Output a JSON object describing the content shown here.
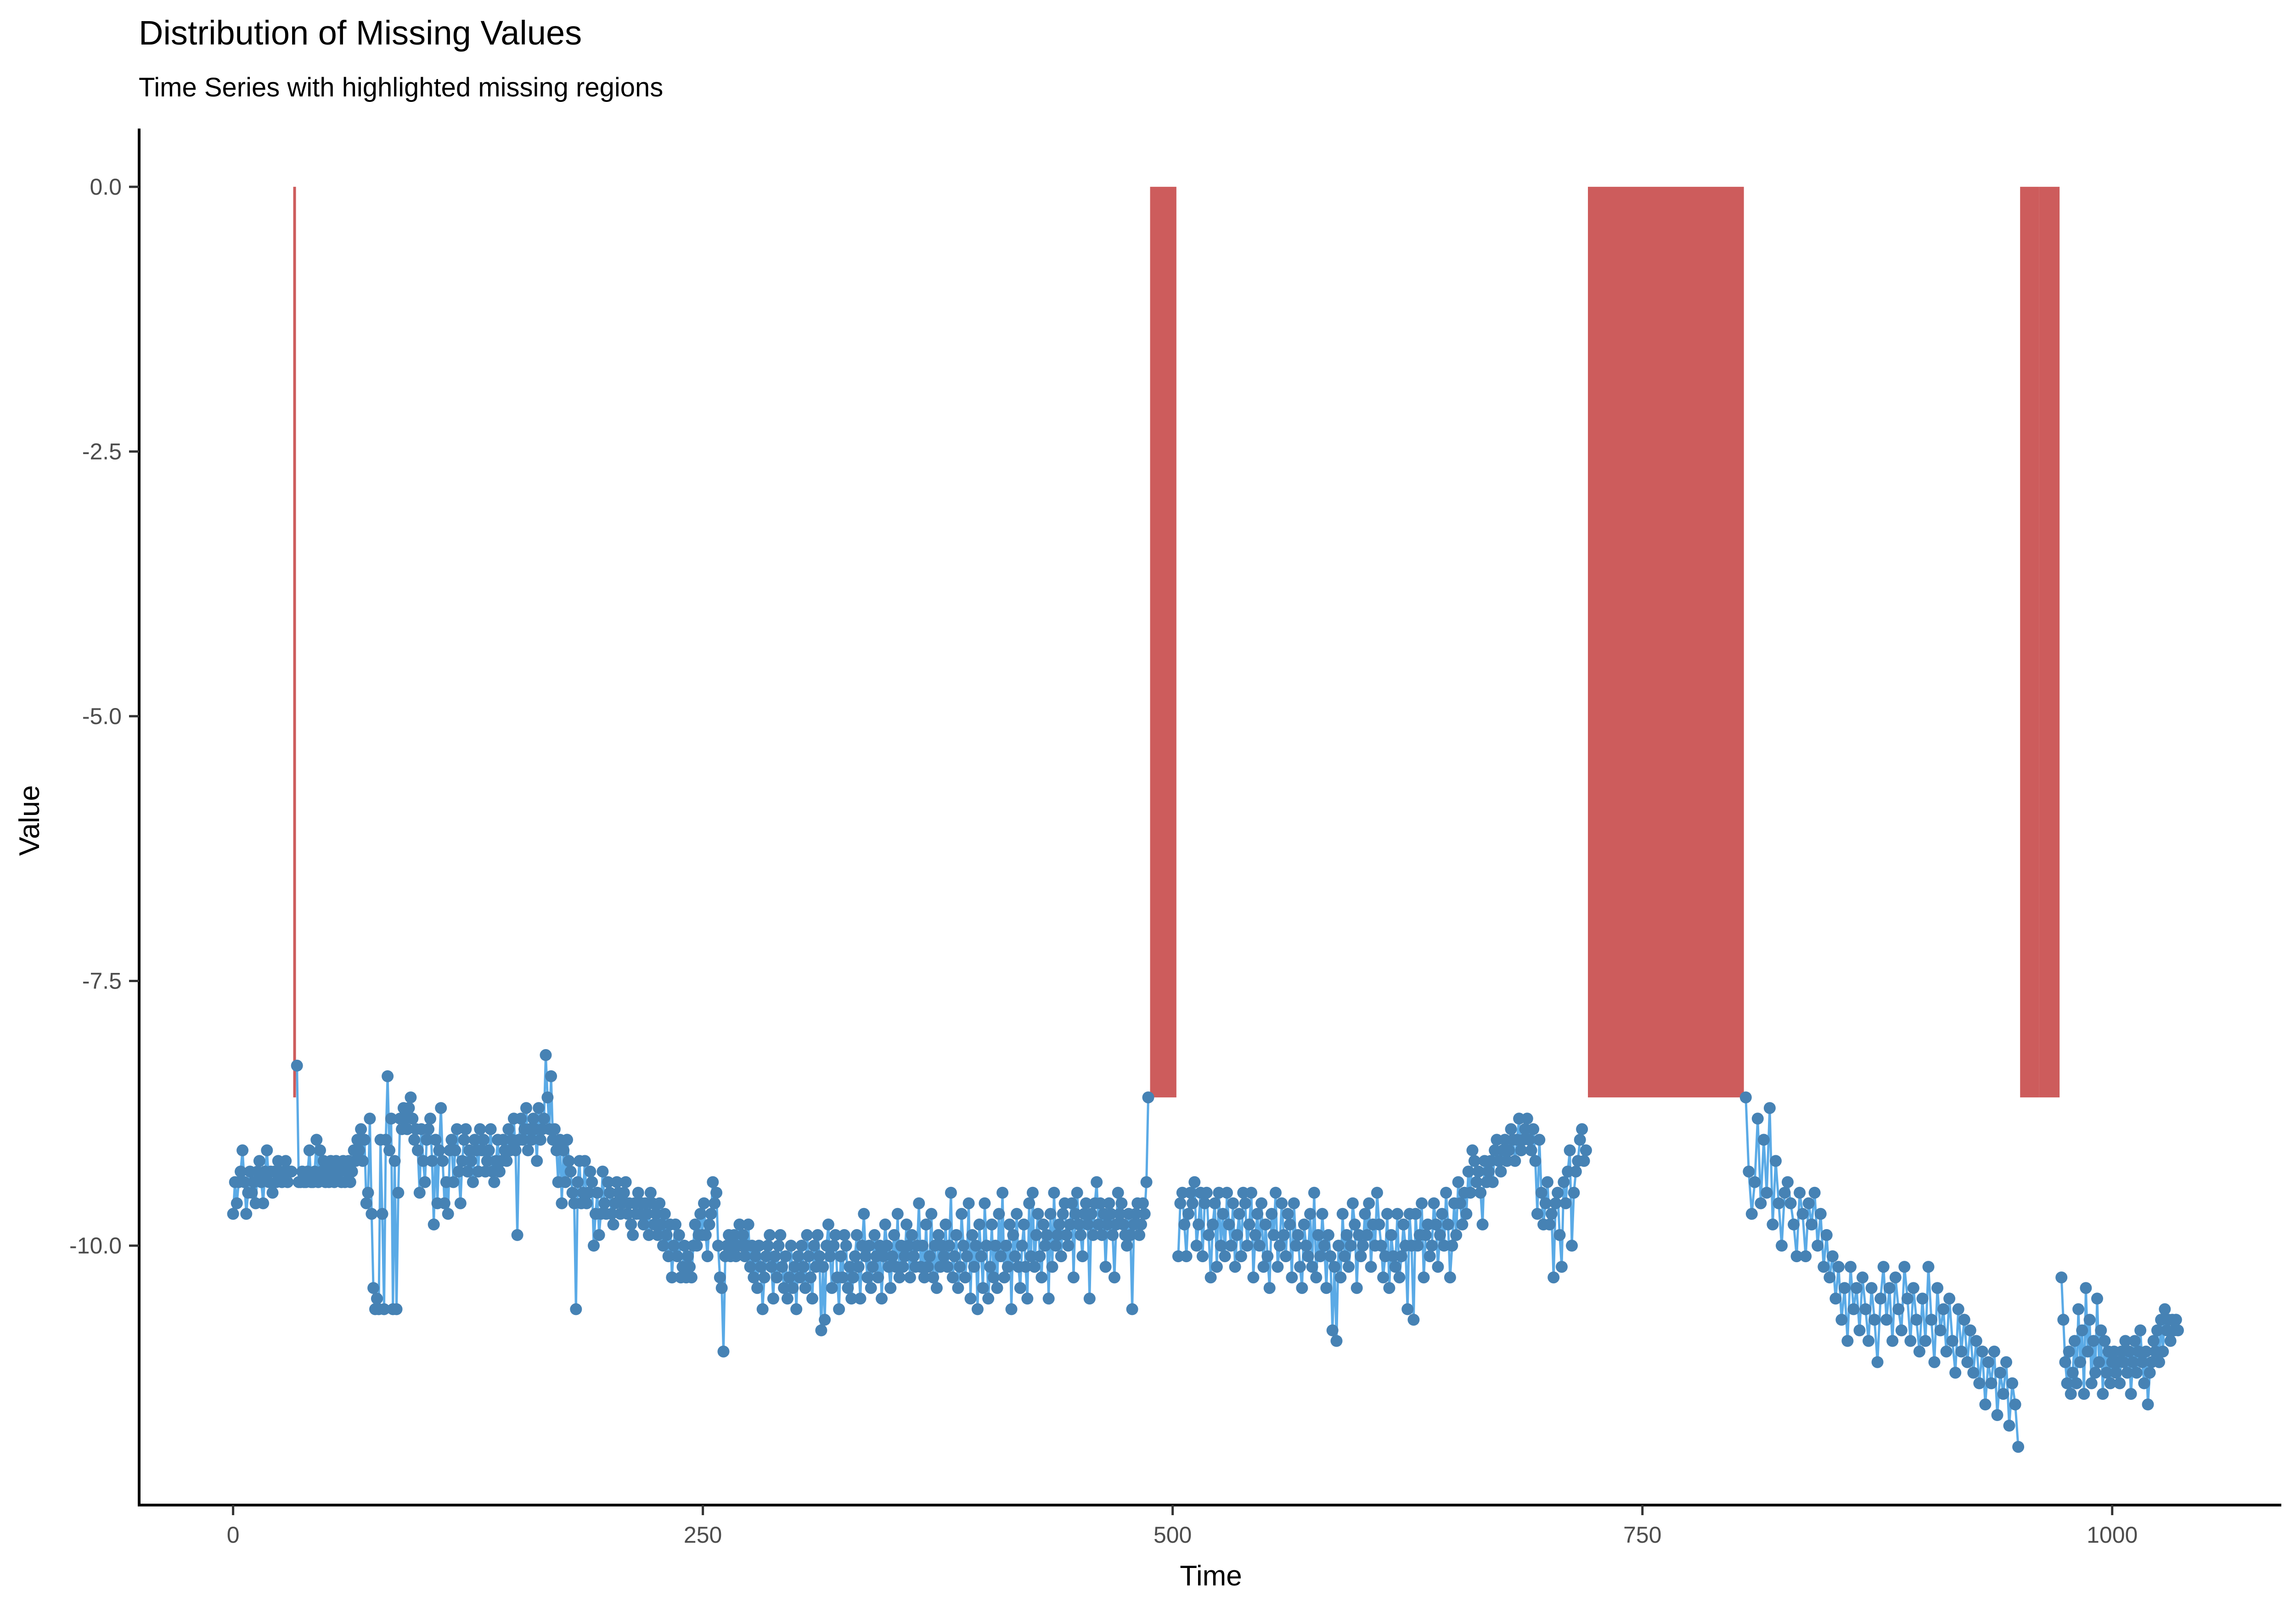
{
  "chart_data": {
    "type": "line",
    "title": "Distribution of Missing Values",
    "subtitle": "Time Series with highlighted missing regions",
    "xlabel": "Time",
    "ylabel": "Value",
    "xlim": [
      -50,
      1090
    ],
    "ylim": [
      -12.45,
      0.55
    ],
    "x_ticks": [
      0,
      250,
      500,
      750,
      1000
    ],
    "x_tick_labels": [
      "0",
      "250",
      "500",
      "750",
      "1000"
    ],
    "y_ticks": [
      0.0,
      -2.5,
      -5.0,
      -7.5,
      -10.0
    ],
    "y_tick_labels": [
      "0.0",
      "-2.5",
      "-5.0",
      "-7.5",
      "-10.0"
    ],
    "grid": false,
    "legend": "none",
    "colors": {
      "line": "#5aaae6",
      "points": "#4682b4",
      "missing_region": "#cd5c5c"
    },
    "missing_regions": [
      {
        "x_start": 32,
        "x_end": 33,
        "y_top": 0.0,
        "y_bottom": -8.6
      },
      {
        "x_start": 488,
        "x_end": 502,
        "y_top": 0.0,
        "y_bottom": -8.6
      },
      {
        "x_start": 721,
        "x_end": 804,
        "y_top": 0.0,
        "y_bottom": -8.6
      },
      {
        "x_start": 951,
        "x_end": 961,
        "y_top": 0.0,
        "y_bottom": -8.6
      },
      {
        "x_start": 961,
        "x_end": 972,
        "y_top": 0.0,
        "y_bottom": -8.6
      }
    ],
    "series": [
      {
        "segments": [
          {
            "x_start": 0,
            "x_end": 31,
            "y": [
              -9.7,
              -9.4,
              -9.6,
              -9.4,
              -9.3,
              -9.1,
              -9.4,
              -9.7,
              -9.5,
              -9.3,
              -9.5,
              -9.4,
              -9.6,
              -9.3,
              -9.2,
              -9.4,
              -9.6,
              -9.3,
              -9.1,
              -9.4,
              -9.3,
              -9.5,
              -9.3,
              -9.4,
              -9.2,
              -9.3,
              -9.4,
              -9.3,
              -9.2,
              -9.4,
              -9.3,
              -9.3
            ]
          },
          {
            "x_start": 34,
            "x_end": 487,
            "y": [
              -8.3,
              -9.4,
              -9.4,
              -9.3,
              -9.4,
              -9.4,
              -9.3,
              -9.1,
              -9.4,
              -9.4,
              -9.3,
              -9.0,
              -9.4,
              -9.1,
              -9.3,
              -9.2,
              -9.4,
              -9.3,
              -9.4,
              -9.2,
              -9.3,
              -9.4,
              -9.2,
              -9.3,
              -9.3,
              -9.4,
              -9.2,
              -9.4,
              -9.3,
              -9.2,
              -9.4,
              -9.3,
              -9.1,
              -9.2,
              -9.0,
              -9.1,
              -8.9,
              -9.2,
              -9.0,
              -9.6,
              -9.5,
              -8.8,
              -9.7,
              -10.4,
              -10.6,
              -10.5,
              -10.6,
              -9.0,
              -9.7,
              -10.6,
              -9.0,
              -8.4,
              -9.1,
              -8.8,
              -10.6,
              -9.2,
              -10.6,
              -9.5,
              -8.8,
              -8.9,
              -8.7,
              -8.8,
              -8.9,
              -8.7,
              -8.6,
              -8.8,
              -9.0,
              -8.9,
              -9.1,
              -9.5,
              -8.9,
              -9.2,
              -9.4,
              -9.0,
              -8.9,
              -8.8,
              -9.2,
              -9.8,
              -9.0,
              -9.6,
              -9.1,
              -8.7,
              -9.2,
              -9.6,
              -9.4,
              -9.7,
              -9.1,
              -9.0,
              -9.4,
              -9.1,
              -8.9,
              -9.3,
              -9.6,
              -9.2,
              -9.0,
              -8.9,
              -9.3,
              -9.1,
              -9.2,
              -9.4,
              -9.0,
              -9.1,
              -9.3,
              -8.9,
              -9.1,
              -9.0,
              -9.3,
              -9.2,
              -9.1,
              -8.9,
              -9.3,
              -9.4,
              -9.2,
              -9.0,
              -9.3,
              -9.2,
              -9.0,
              -9.1,
              -9.2,
              -8.9,
              -9.1,
              -9.0,
              -8.8,
              -9.1,
              -9.9,
              -9.0,
              -8.8,
              -9.0,
              -8.9,
              -8.7,
              -9.1,
              -8.9,
              -9.0,
              -8.8,
              -8.9,
              -9.2,
              -8.7,
              -9.0,
              -8.9,
              -8.8,
              -8.2,
              -8.6,
              -8.9,
              -8.4,
              -9.0,
              -8.9,
              -9.1,
              -9.4,
              -9.0,
              -9.6,
              -9.1,
              -9.4,
              -9.0,
              -9.2,
              -9.3,
              -9.5,
              -9.6,
              -10.6,
              -9.4,
              -9.2,
              -9.6,
              -9.5,
              -9.2,
              -9.6,
              -9.5,
              -9.3,
              -9.4,
              -10.0,
              -9.7,
              -9.5,
              -9.9,
              -9.7,
              -9.3,
              -9.6,
              -9.7,
              -9.4,
              -9.5,
              -9.7,
              -9.8,
              -9.6,
              -9.4,
              -9.5,
              -9.7,
              -9.6,
              -9.5,
              -9.4,
              -9.7,
              -9.6,
              -9.8,
              -9.9,
              -9.6,
              -9.7,
              -9.5,
              -9.7,
              -9.6,
              -9.8,
              -9.6,
              -9.7,
              -9.9,
              -9.5,
              -9.6,
              -9.8,
              -9.7,
              -9.9,
              -9.6,
              -9.8,
              -10.0,
              -9.7,
              -9.9,
              -10.1,
              -9.8,
              -10.3,
              -10.0,
              -9.8,
              -10.1,
              -9.9,
              -10.3,
              -10.2,
              -10.0,
              -10.3,
              -10.1,
              -10.2,
              -10.3,
              -10.0,
              -9.8,
              -10.0,
              -9.9,
              -9.7,
              -9.9,
              -9.6,
              -9.9,
              -10.1,
              -9.8,
              -9.7,
              -9.4,
              -9.6,
              -9.5,
              -10.0,
              -10.3,
              -10.4,
              -11.0,
              -10.1,
              -10.0,
              -9.9,
              -10.1,
              -10.0,
              -9.9,
              -10.1,
              -10.0,
              -9.8,
              -10.0,
              -9.9,
              -10.1,
              -10.0,
              -9.8,
              -10.2,
              -10.0,
              -10.3,
              -10.1,
              -10.4,
              -10.0,
              -10.2,
              -10.6,
              -10.3,
              -10.1,
              -10.0,
              -9.9,
              -10.2,
              -10.5,
              -10.1,
              -10.3,
              -10.0,
              -9.9,
              -10.2,
              -10.4,
              -10.1,
              -10.5,
              -10.3,
              -10.0,
              -10.4,
              -10.2,
              -10.6,
              -10.1,
              -10.3,
              -10.0,
              -10.2,
              -10.4,
              -9.9,
              -10.1,
              -10.3,
              -10.5,
              -10.0,
              -10.2,
              -9.9,
              -10.1,
              -10.8,
              -10.2,
              -10.7,
              -10.0,
              -9.8,
              -10.1,
              -10.4,
              -10.0,
              -9.9,
              -10.3,
              -10.6,
              -10.1,
              -10.3,
              -9.9,
              -10.0,
              -10.4,
              -10.2,
              -10.5,
              -10.3,
              -10.1,
              -9.9,
              -10.2,
              -10.5,
              -10.0,
              -9.7,
              -10.1,
              -10.3,
              -10.0,
              -10.4,
              -10.2,
              -9.9,
              -10.1,
              -10.3,
              -10.0,
              -10.5,
              -10.1,
              -9.8,
              -10.0,
              -10.2,
              -10.4,
              -10.1,
              -9.9,
              -10.2,
              -9.7,
              -10.3,
              -10.0,
              -10.2,
              -10.1,
              -9.8,
              -10.0,
              -10.3,
              -9.9,
              -10.1,
              -10.2,
              -10.0,
              -9.6,
              -10.2,
              -10.0,
              -10.3,
              -9.8,
              -10.2,
              -10.1,
              -9.7,
              -10.3,
              -10.0,
              -10.4,
              -9.9,
              -10.2,
              -10.0,
              -10.1,
              -9.8,
              -10.2,
              -10.0,
              -9.5,
              -10.3,
              -10.1,
              -9.9,
              -10.4,
              -10.2,
              -9.7,
              -10.0,
              -10.3,
              -10.1,
              -9.6,
              -10.5,
              -9.9,
              -10.2,
              -10.0,
              -10.6,
              -9.8,
              -10.1,
              -10.4,
              -9.6,
              -10.0,
              -10.5,
              -10.2,
              -9.8,
              -10.3,
              -10.0,
              -10.4,
              -9.7,
              -10.1,
              -9.5,
              -10.3,
              -10.0,
              -10.2,
              -9.8,
              -10.6,
              -9.9,
              -10.1,
              -9.7,
              -10.2,
              -10.4,
              -10.0,
              -9.8,
              -10.2,
              -10.5,
              -9.6,
              -10.1,
              -9.5,
              -10.2,
              -9.9,
              -9.7,
              -10.1,
              -10.3,
              -9.8,
              -10.0,
              -9.9,
              -10.5,
              -9.7,
              -10.2,
              -9.5,
              -10.0,
              -9.9,
              -9.8,
              -10.1,
              -9.7,
              -9.6,
              -9.9,
              -10.0,
              -9.8,
              -9.6,
              -10.3,
              -9.7,
              -9.5,
              -9.8,
              -9.9,
              -10.1,
              -9.7,
              -9.6,
              -9.8,
              -10.5,
              -9.7,
              -9.9,
              -9.6,
              -9.4,
              -9.8,
              -9.6,
              -9.9,
              -9.7,
              -10.2,
              -9.8,
              -9.6,
              -9.7,
              -9.9,
              -10.3,
              -9.8,
              -9.5,
              -9.7,
              -9.6,
              -9.8,
              -9.9,
              -10.0,
              -9.7,
              -9.9,
              -10.6,
              -9.8,
              -9.7,
              -9.6,
              -9.9,
              -9.8,
              -9.6,
              -9.7,
              -9.4,
              -8.6
            ]
          },
          {
            "x_start": 503,
            "x_end": 720,
            "y": [
              -10.1,
              -9.6,
              -9.5,
              -9.8,
              -10.1,
              -9.7,
              -9.5,
              -9.6,
              -9.4,
              -10.0,
              -9.8,
              -9.5,
              -10.1,
              -9.6,
              -9.5,
              -9.9,
              -10.3,
              -9.8,
              -9.6,
              -10.2,
              -9.5,
              -10.0,
              -9.7,
              -10.1,
              -9.5,
              -9.8,
              -10.0,
              -9.6,
              -10.2,
              -9.9,
              -9.7,
              -10.1,
              -9.5,
              -9.6,
              -10.0,
              -9.8,
              -9.5,
              -10.3,
              -9.9,
              -9.7,
              -10.0,
              -9.6,
              -10.2,
              -9.8,
              -10.1,
              -10.4,
              -9.7,
              -9.9,
              -9.5,
              -10.2,
              -10.0,
              -9.6,
              -9.9,
              -10.1,
              -9.7,
              -9.8,
              -10.3,
              -9.6,
              -10.0,
              -9.9,
              -10.2,
              -10.4,
              -9.8,
              -10.0,
              -10.1,
              -9.7,
              -10.2,
              -9.5,
              -10.3,
              -9.9,
              -10.1,
              -9.7,
              -10.0,
              -10.4,
              -9.9,
              -10.1,
              -10.8,
              -10.2,
              -10.9,
              -10.0,
              -10.3,
              -9.7,
              -10.1,
              -9.9,
              -10.2,
              -10.0,
              -9.6,
              -9.8,
              -10.4,
              -9.9,
              -10.1,
              -10.0,
              -9.7,
              -9.9,
              -9.6,
              -10.2,
              -9.8,
              -10.0,
              -9.5,
              -9.8,
              -10.0,
              -10.3,
              -10.1,
              -9.7,
              -10.4,
              -9.9,
              -10.1,
              -10.2,
              -9.7,
              -10.3,
              -10.1,
              -9.8,
              -10.0,
              -10.6,
              -9.7,
              -10.0,
              -10.7,
              -9.7,
              -10.0,
              -9.9,
              -9.6,
              -10.3,
              -9.9,
              -9.8,
              -10.1,
              -10.0,
              -9.6,
              -9.8,
              -10.2,
              -9.9,
              -9.7,
              -10.0,
              -9.5,
              -9.8,
              -10.3,
              -10.0,
              -9.6,
              -9.9,
              -9.4,
              -9.6,
              -9.8,
              -9.5,
              -9.7,
              -9.3,
              -9.5,
              -9.1,
              -9.2,
              -9.4,
              -9.3,
              -9.5,
              -9.8,
              -9.2,
              -9.4,
              -9.3,
              -9.2,
              -9.4,
              -9.1,
              -9.0,
              -9.2,
              -9.3,
              -9.1,
              -9.0,
              -9.2,
              -9.1,
              -8.9,
              -9.0,
              -9.2,
              -9.0,
              -8.8,
              -9.1,
              -9.0,
              -8.9,
              -8.8,
              -9.0,
              -9.1,
              -8.9,
              -9.2,
              -9.7,
              -9.0,
              -9.5,
              -9.8,
              -9.6,
              -9.4,
              -9.8,
              -9.7,
              -10.3,
              -9.6,
              -9.5,
              -9.9,
              -10.2,
              -9.4,
              -9.6,
              -9.3,
              -9.1,
              -10.0,
              -9.5,
              -9.3,
              -9.2,
              -9.0,
              -8.9,
              -9.2,
              -9.1
            ]
          },
          {
            "x_start": 805,
            "x_end": 950,
            "y": [
              -8.6,
              -9.3,
              -9.7,
              -9.4,
              -8.8,
              -9.6,
              -9.0,
              -9.5,
              -8.7,
              -9.8,
              -9.2,
              -9.6,
              -10.0,
              -9.5,
              -9.4,
              -9.6,
              -9.8,
              -10.1,
              -9.5,
              -9.7,
              -10.1,
              -9.6,
              -9.8,
              -9.5,
              -10.0,
              -9.7,
              -10.2,
              -9.9,
              -10.3,
              -10.1,
              -10.5,
              -10.2,
              -10.7,
              -10.4,
              -10.9,
              -10.2,
              -10.6,
              -10.4,
              -10.8,
              -10.3,
              -10.6,
              -10.9,
              -10.4,
              -10.7,
              -11.1,
              -10.5,
              -10.2,
              -10.7,
              -10.4,
              -10.9,
              -10.3,
              -10.6,
              -10.8,
              -10.2,
              -10.5,
              -10.9,
              -10.4,
              -10.7,
              -11.0,
              -10.5,
              -10.9,
              -10.2,
              -10.7,
              -11.1,
              -10.4,
              -10.8,
              -10.6,
              -11.0,
              -10.5,
              -10.9,
              -11.2,
              -10.6,
              -11.0,
              -10.7,
              -11.1,
              -10.8,
              -11.2,
              -10.9,
              -11.3,
              -11.0,
              -11.5,
              -11.1,
              -11.3,
              -11.0,
              -11.6,
              -11.2,
              -11.4,
              -11.1,
              -11.7,
              -11.3,
              -11.5,
              -11.9
            ]
          },
          {
            "x_start": 973,
            "x_end": 1035,
            "y": [
              -10.3,
              -10.7,
              -11.1,
              -11.3,
              -11.0,
              -11.4,
              -11.2,
              -10.9,
              -11.3,
              -10.6,
              -11.1,
              -10.8,
              -11.4,
              -10.4,
              -11.0,
              -10.7,
              -11.3,
              -10.9,
              -11.2,
              -10.5,
              -11.1,
              -10.8,
              -11.4,
              -10.9,
              -11.2,
              -11.0,
              -11.3,
              -11.1,
              -11.0,
              -11.2,
              -11.1,
              -11.3,
              -11.0,
              -11.1,
              -10.9,
              -11.2,
              -11.0,
              -11.4,
              -11.1,
              -10.9,
              -11.2,
              -11.0,
              -10.8,
              -11.1,
              -11.3,
              -11.0,
              -11.5,
              -11.2,
              -11.1,
              -10.9,
              -11.0,
              -10.8,
              -11.1,
              -10.7,
              -11.0,
              -10.6,
              -10.8,
              -10.7,
              -10.9,
              -10.7,
              -10.8,
              -10.7,
              -10.8
            ]
          }
        ]
      }
    ]
  }
}
